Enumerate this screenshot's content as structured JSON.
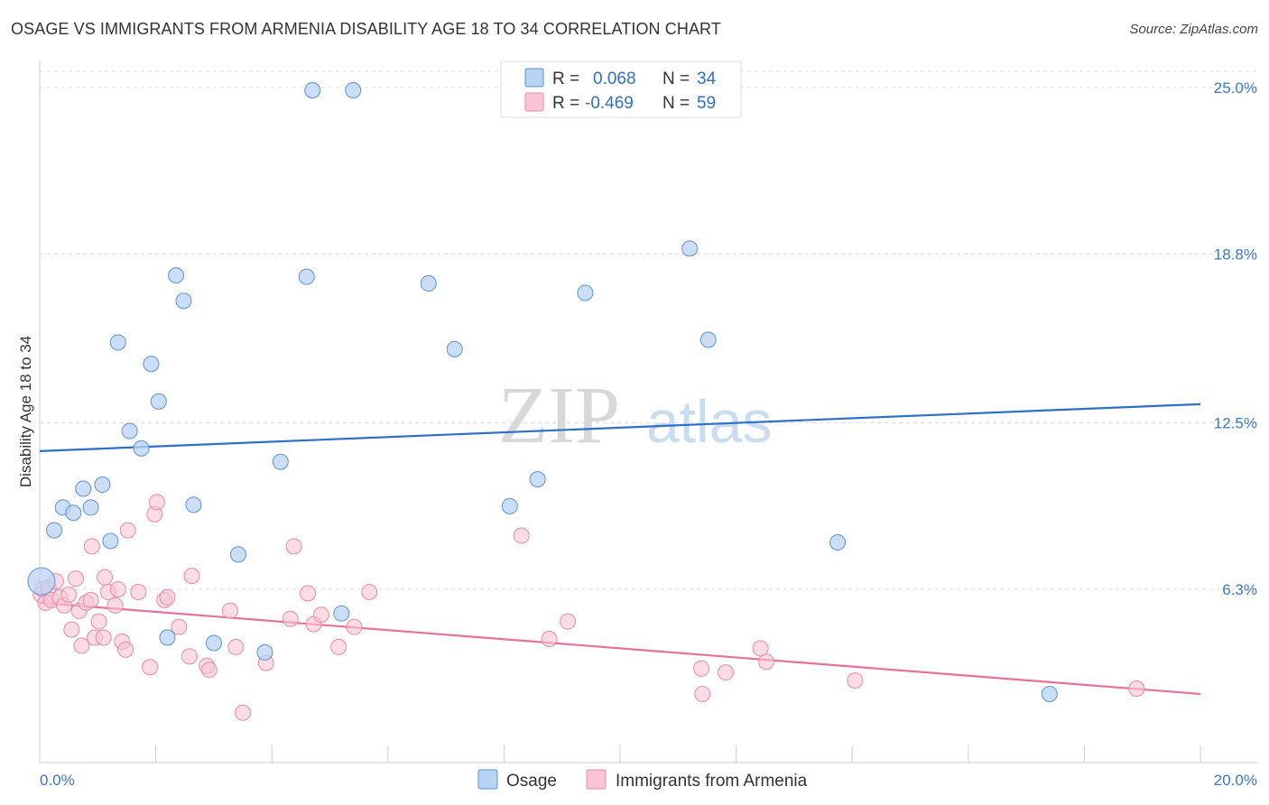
{
  "title": "OSAGE VS IMMIGRANTS FROM ARMENIA DISABILITY AGE 18 TO 34 CORRELATION CHART",
  "source": "Source: ZipAtlas.com",
  "watermark": {
    "zip": "ZIP",
    "atlas": "atlas"
  },
  "colors": {
    "osage_fill": "#b9d3f3",
    "osage_stroke": "#5b93d6",
    "osage_line": "#2f6fc8",
    "armenia_fill": "#f9c4d3",
    "armenia_stroke": "#e88aa8",
    "armenia_line": "#e8709a",
    "grid": "#dddddd",
    "tick_label": "#3a78c8"
  },
  "legend": {
    "rows": [
      {
        "r_label": "R =",
        "r_value": "0.068",
        "n_label": "N =",
        "n_value": "34"
      },
      {
        "r_label": "R =",
        "r_value": "-0.469",
        "n_label": "N =",
        "n_value": "59"
      }
    ]
  },
  "bottom_legend": [
    "Osage",
    "Immigrants from Armenia"
  ],
  "chart_data": {
    "type": "scatter",
    "title": "OSAGE VS IMMIGRANTS FROM ARMENIA DISABILITY AGE 18 TO 34 CORRELATION CHART",
    "xlabel": "",
    "ylabel": "Disability Age 18 to 34",
    "xlim": [
      0,
      20
    ],
    "ylim": [
      0,
      25.7
    ],
    "x_tick_labels": [
      "0.0%",
      "20.0%"
    ],
    "y_ticks": [
      6.3,
      12.5,
      18.8,
      25.0
    ],
    "y_tick_labels": [
      "6.3%",
      "12.5%",
      "18.8%",
      "25.0%"
    ],
    "grid": "horizontal dashed",
    "legend_position": "top-center",
    "series": [
      {
        "name": "Osage",
        "points": [
          [
            0.03,
            6.6
          ],
          [
            0.25,
            8.5
          ],
          [
            0.4,
            9.35
          ],
          [
            0.58,
            9.15
          ],
          [
            0.75,
            10.05
          ],
          [
            0.88,
            9.35
          ],
          [
            1.08,
            10.2
          ],
          [
            1.22,
            8.1
          ],
          [
            1.35,
            15.5
          ],
          [
            1.55,
            12.2
          ],
          [
            1.75,
            11.55
          ],
          [
            1.92,
            14.7
          ],
          [
            2.05,
            13.3
          ],
          [
            2.2,
            4.5
          ],
          [
            2.35,
            18.0
          ],
          [
            2.48,
            17.05
          ],
          [
            2.65,
            9.45
          ],
          [
            3.0,
            4.3
          ],
          [
            3.42,
            7.6
          ],
          [
            3.88,
            3.95
          ],
          [
            4.15,
            11.05
          ],
          [
            4.6,
            17.95
          ],
          [
            4.7,
            24.9
          ],
          [
            5.2,
            5.4
          ],
          [
            5.4,
            24.9
          ],
          [
            6.7,
            17.7
          ],
          [
            7.15,
            15.25
          ],
          [
            8.1,
            9.4
          ],
          [
            8.58,
            10.4
          ],
          [
            9.4,
            17.35
          ],
          [
            11.2,
            19.0
          ],
          [
            11.52,
            15.6
          ],
          [
            13.75,
            8.05
          ],
          [
            17.4,
            2.4
          ]
        ]
      },
      {
        "name": "Immigrants from Armenia",
        "points": [
          [
            0.02,
            6.1
          ],
          [
            0.05,
            6.3
          ],
          [
            0.1,
            5.8
          ],
          [
            0.15,
            6.35
          ],
          [
            0.2,
            5.9
          ],
          [
            0.28,
            6.6
          ],
          [
            0.35,
            6.0
          ],
          [
            0.42,
            5.7
          ],
          [
            0.5,
            6.1
          ],
          [
            0.55,
            4.8
          ],
          [
            0.62,
            6.7
          ],
          [
            0.68,
            5.5
          ],
          [
            0.72,
            4.2
          ],
          [
            0.8,
            5.8
          ],
          [
            0.88,
            5.9
          ],
          [
            0.9,
            7.9
          ],
          [
            0.95,
            4.5
          ],
          [
            1.02,
            5.1
          ],
          [
            1.1,
            4.5
          ],
          [
            1.12,
            6.75
          ],
          [
            1.18,
            6.2
          ],
          [
            1.3,
            5.7
          ],
          [
            1.35,
            6.3
          ],
          [
            1.42,
            4.35
          ],
          [
            1.48,
            4.05
          ],
          [
            1.52,
            8.5
          ],
          [
            1.7,
            6.2
          ],
          [
            1.9,
            3.4
          ],
          [
            1.98,
            9.1
          ],
          [
            2.02,
            9.55
          ],
          [
            2.15,
            5.9
          ],
          [
            2.2,
            6.0
          ],
          [
            2.4,
            4.9
          ],
          [
            2.58,
            3.8
          ],
          [
            2.62,
            6.8
          ],
          [
            2.88,
            3.45
          ],
          [
            2.92,
            3.3
          ],
          [
            3.28,
            5.5
          ],
          [
            3.38,
            4.15
          ],
          [
            3.5,
            1.7
          ],
          [
            3.9,
            3.55
          ],
          [
            4.32,
            5.2
          ],
          [
            4.38,
            7.9
          ],
          [
            4.62,
            6.15
          ],
          [
            4.72,
            5.0
          ],
          [
            4.85,
            5.35
          ],
          [
            5.15,
            4.15
          ],
          [
            5.42,
            4.9
          ],
          [
            5.68,
            6.2
          ],
          [
            8.3,
            8.3
          ],
          [
            8.78,
            4.45
          ],
          [
            9.1,
            5.1
          ],
          [
            11.4,
            3.35
          ],
          [
            11.42,
            2.4
          ],
          [
            11.82,
            3.2
          ],
          [
            12.42,
            4.1
          ],
          [
            12.52,
            3.6
          ],
          [
            14.05,
            2.9
          ],
          [
            18.9,
            2.6
          ]
        ]
      }
    ],
    "trendlines": [
      {
        "name": "Osage",
        "x": [
          0,
          20
        ],
        "y": [
          11.45,
          13.2
        ]
      },
      {
        "name": "Immigrants from Armenia",
        "x": [
          0,
          20
        ],
        "y": [
          5.8,
          2.4
        ]
      }
    ]
  }
}
